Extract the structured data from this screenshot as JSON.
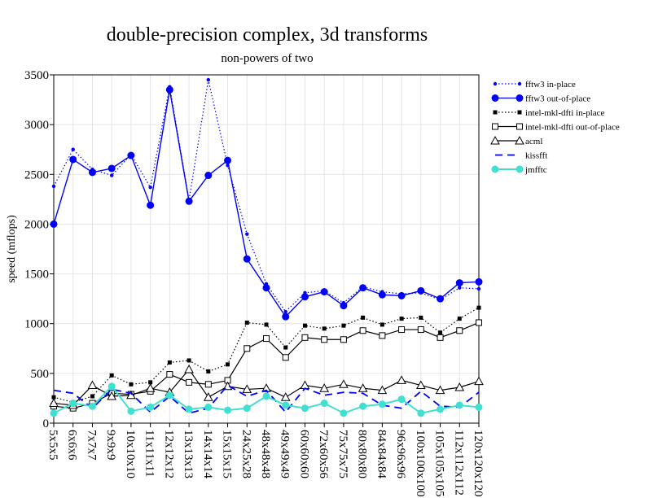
{
  "chart_data": {
    "type": "line",
    "title": "double-precision complex, 3d transforms",
    "subtitle": "non-powers of two",
    "ylabel": "speed (mflops)",
    "xlabel": "",
    "ylim": [
      0,
      3500
    ],
    "yticks": [
      0,
      500,
      1000,
      1500,
      2000,
      2500,
      3000,
      3500
    ],
    "grid": true,
    "legend_position": "right",
    "categories": [
      "5x5x5",
      "6x6x6",
      "7x7x7",
      "9x9x9",
      "10x10x10",
      "11x11x11",
      "12x12x12",
      "13x13x13",
      "14x14x14",
      "15x15x15",
      "24x25x28",
      "48x48x48",
      "49x49x49",
      "60x60x60",
      "72x60x56",
      "75x75x75",
      "80x80x80",
      "84x84x84",
      "96x96x96",
      "100x100x100",
      "105x105x105",
      "112x112x112",
      "120x120x120"
    ],
    "series": [
      {
        "name": "fftw3 in-place",
        "color": "#0000ff",
        "line": "dotted",
        "marker": "small-dot",
        "values": [
          2380,
          2750,
          2550,
          2490,
          2700,
          2370,
          3380,
          2240,
          3450,
          2590,
          1900,
          1400,
          1120,
          1310,
          1330,
          1210,
          1370,
          1320,
          1300,
          1310,
          1240,
          1360,
          1350
        ]
      },
      {
        "name": "fftw3 out-of-place",
        "color": "#0000ff",
        "line": "solid",
        "marker": "dot",
        "values": [
          2000,
          2650,
          2520,
          2560,
          2690,
          2190,
          3350,
          2230,
          2490,
          2640,
          1650,
          1360,
          1070,
          1270,
          1320,
          1180,
          1360,
          1290,
          1280,
          1330,
          1250,
          1410,
          1420
        ]
      },
      {
        "name": "intel-mkl-dfti in-place",
        "color": "#000000",
        "line": "dotted",
        "marker": "filled-square",
        "values": [
          260,
          210,
          270,
          480,
          390,
          410,
          610,
          630,
          520,
          590,
          1010,
          990,
          760,
          980,
          950,
          980,
          1060,
          990,
          1050,
          1060,
          910,
          1050,
          1160
        ]
      },
      {
        "name": "intel-mkl-dfti out-of-place",
        "color": "#000000",
        "line": "solid",
        "marker": "open-square",
        "values": [
          170,
          150,
          200,
          300,
          290,
          320,
          490,
          410,
          390,
          430,
          750,
          850,
          660,
          860,
          840,
          840,
          930,
          880,
          940,
          940,
          860,
          930,
          1010
        ]
      },
      {
        "name": "acml",
        "color": "#000000",
        "line": "solid",
        "marker": "open-triangle",
        "values": [
          200,
          180,
          380,
          270,
          280,
          350,
          310,
          540,
          260,
          370,
          340,
          350,
          260,
          380,
          350,
          390,
          350,
          330,
          430,
          380,
          330,
          360,
          420
        ]
      },
      {
        "name": "kissfft",
        "color": "#0000ff",
        "line": "dashed",
        "marker": "none",
        "values": [
          330,
          300,
          150,
          340,
          300,
          110,
          270,
          100,
          150,
          380,
          270,
          330,
          110,
          350,
          280,
          310,
          300,
          180,
          150,
          320,
          170,
          160,
          310
        ]
      },
      {
        "name": "jmfftc",
        "color": "#40e0d0",
        "line": "solid",
        "marker": "dot",
        "values": [
          100,
          200,
          170,
          370,
          120,
          160,
          280,
          140,
          160,
          130,
          150,
          270,
          180,
          150,
          200,
          100,
          170,
          190,
          240,
          100,
          140,
          180,
          160
        ]
      }
    ]
  }
}
